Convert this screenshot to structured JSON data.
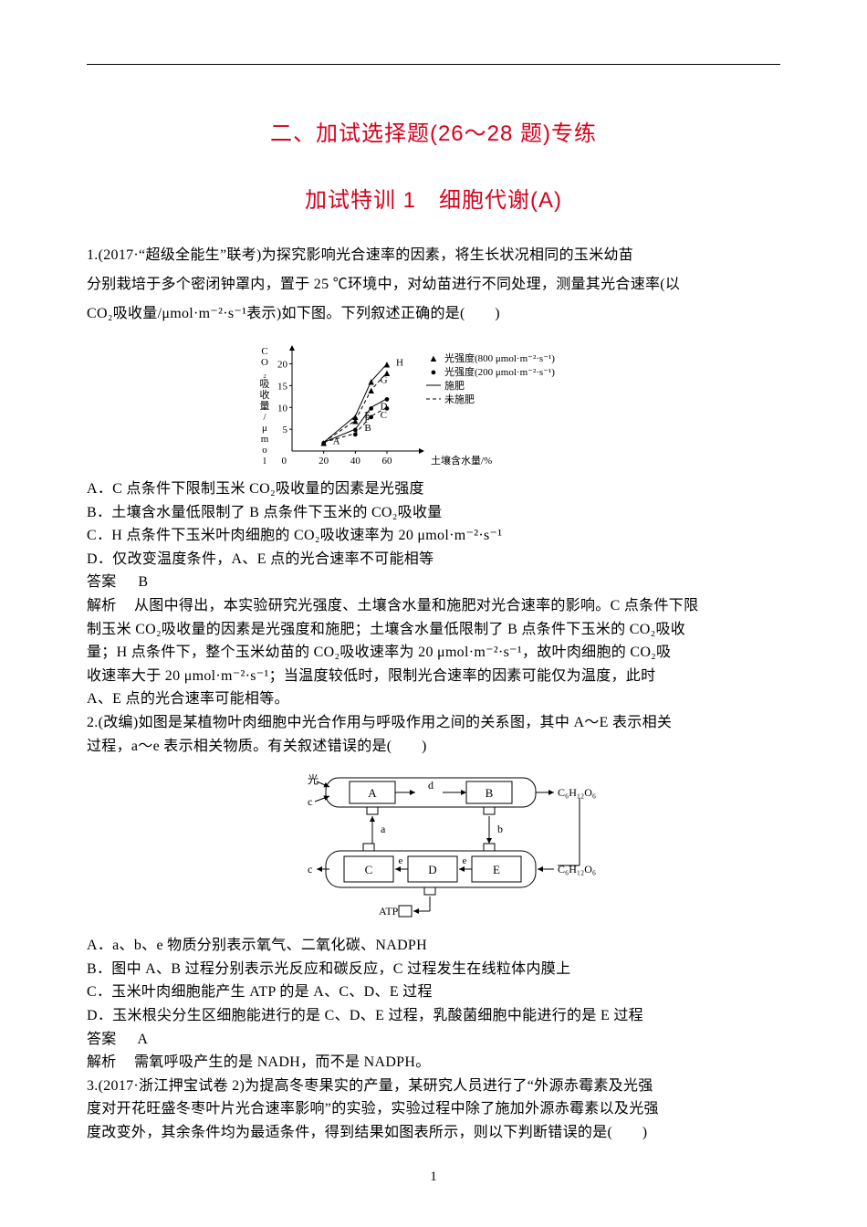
{
  "page": {
    "title1": "二、加试选择题(26～28 题)专练",
    "title2": "加试特训 1　细胞代谢(A)",
    "footer": "1"
  },
  "q1": {
    "stem_a": "1.(2017·“超级全能生”联考)为探究影响光合速率的因素，将生长状况相同的玉米幼苗",
    "stem_b": "分别栽培于多个密闭钟罩内，置于 25 ℃环境中，对幼苗进行不同处理，测量其光合速率(以",
    "stem_c": "CO₂吸收量/μmol·m⁻²·s⁻¹表示)如下图。下列叙述正确的是(　　)",
    "optA": "A．C 点条件下限制玉米 CO₂吸收量的因素是光强度",
    "optB": "B．土壤含水量低限制了 B 点条件下玉米的 CO₂吸收量",
    "optC": "C．H 点条件下玉米叶肉细胞的 CO₂吸收速率为 20 μmol·m⁻²·s⁻¹",
    "optD": "D．仅改变温度条件，A、E 点的光合速率不可能相等",
    "answer_label": "答案",
    "answer": "B",
    "explain_label": "解析",
    "explain1": "从图中得出，本实验研究光强度、土壤含水量和施肥对光合速率的影响。C 点条件下限",
    "explain2": "制玉米 CO₂吸收量的因素是光强度和施肥；土壤含水量低限制了 B 点条件下玉米的 CO₂吸收",
    "explain3": "量；H 点条件下，整个玉米幼苗的 CO₂吸收速率为 20 μmol·m⁻²·s⁻¹，故叶肉细胞的 CO₂吸",
    "explain4": "收速率大于 20 μmol·m⁻²·s⁻¹；当温度较低时，限制光合速率的因素可能仅为温度，此时",
    "explain5": "A、E 点的光合速率可能相等。",
    "chart": {
      "type": "scatter-line",
      "y_label": "CO₂吸收量/μmol·m⁻²·s⁻¹",
      "x_label": "土壤含水量/%",
      "x_ticks": [
        20,
        40,
        60
      ],
      "y_ticks": [
        5,
        10,
        15,
        20
      ],
      "xlim": [
        0,
        75
      ],
      "ylim": [
        0,
        22
      ],
      "series": [
        {
          "name": "tri-solid",
          "marker": "▲",
          "dash": "solid",
          "points": [
            {
              "x": 20,
              "y": 2,
              "label": "A"
            },
            {
              "x": 40,
              "y": 8,
              "label": "E"
            },
            {
              "x": 50,
              "y": 16,
              "label": "G"
            },
            {
              "x": 60,
              "y": 20,
              "label": "H"
            }
          ]
        },
        {
          "name": "tri-dash",
          "marker": "▲",
          "dash": "dash",
          "points": [
            {
              "x": 20,
              "y": 2
            },
            {
              "x": 40,
              "y": 7,
              "label": "F"
            },
            {
              "x": 50,
              "y": 14
            },
            {
              "x": 60,
              "y": 18
            }
          ]
        },
        {
          "name": "dot-solid",
          "marker": "●",
          "dash": "solid",
          "points": [
            {
              "x": 20,
              "y": 2
            },
            {
              "x": 40,
              "y": 5,
              "label": "B"
            },
            {
              "x": 50,
              "y": 10,
              "label": "D"
            },
            {
              "x": 60,
              "y": 12
            }
          ]
        },
        {
          "name": "dot-dash",
          "marker": "●",
          "dash": "dash",
          "points": [
            {
              "x": 20,
              "y": 2
            },
            {
              "x": 40,
              "y": 4
            },
            {
              "x": 50,
              "y": 8,
              "label": "C"
            },
            {
              "x": 60,
              "y": 10
            }
          ]
        }
      ],
      "legend": [
        {
          "marker": "▲",
          "text": "光强度(800 μmol·m⁻²·s⁻¹)"
        },
        {
          "marker": "●",
          "text": "光强度(200 μmol·m⁻²·s⁻¹)"
        },
        {
          "line": "solid",
          "text": "施肥"
        },
        {
          "line": "dash",
          "text": "未施肥"
        }
      ],
      "axis_color": "#000000",
      "text_color": "#000000",
      "font_size": 11
    }
  },
  "q2": {
    "stem_a": "2.(改编)如图是某植物叶肉细胞中光合作用与呼吸作用之间的关系图，其中 A～E 表示相关",
    "stem_b": "过程，a～e 表示相关物质。有关叙述错误的是(　　)",
    "optA": "A．a、b、e 物质分别表示氧气、二氧化碳、NADPH",
    "optB": "B．图中 A、B 过程分别表示光反应和碳反应，C 过程发生在线粒体内膜上",
    "optC": "C．玉米叶肉细胞能产生 ATP 的是 A、C、D、E 过程",
    "optD": "D．玉米根尖分生区细胞能进行的是 C、D、E 过程，乳酸菌细胞中能进行的是 E 过程",
    "answer_label": "答案",
    "answer": "A",
    "explain_label": "解析",
    "explain1": "需氧呼吸产生的是 NADH，而不是 NADPH。",
    "diagram": {
      "type": "flowchart",
      "inputs_left": [
        "光",
        "c"
      ],
      "top_row": {
        "boxes": [
          "A",
          "B"
        ],
        "arrow_label": "d",
        "out_right": "C₆H₁₂O₆"
      },
      "mid_arrows": [
        "a",
        "b"
      ],
      "bottom_row": {
        "boxes": [
          "C",
          "D",
          "E"
        ],
        "inner_labels": [
          "e",
          "e"
        ],
        "in_left": "c",
        "in_right": "C₆H₁₂O₆"
      },
      "bottom_out": "ATP",
      "box_stroke": "#000000",
      "arrow_color": "#000000",
      "font_size": 13
    }
  },
  "q3": {
    "stem_a": "3.(2017·浙江押宝试卷 2)为提高冬枣果实的产量，某研究人员进行了“外源赤霉素及光强",
    "stem_b": "度对开花旺盛冬枣叶片光合速率影响”的实验，实验过程中除了施加外源赤霉素以及光强",
    "stem_c": "度改变外，其余条件均为最适条件，得到结果如图表所示，则以下判断错误的是(　　)"
  }
}
